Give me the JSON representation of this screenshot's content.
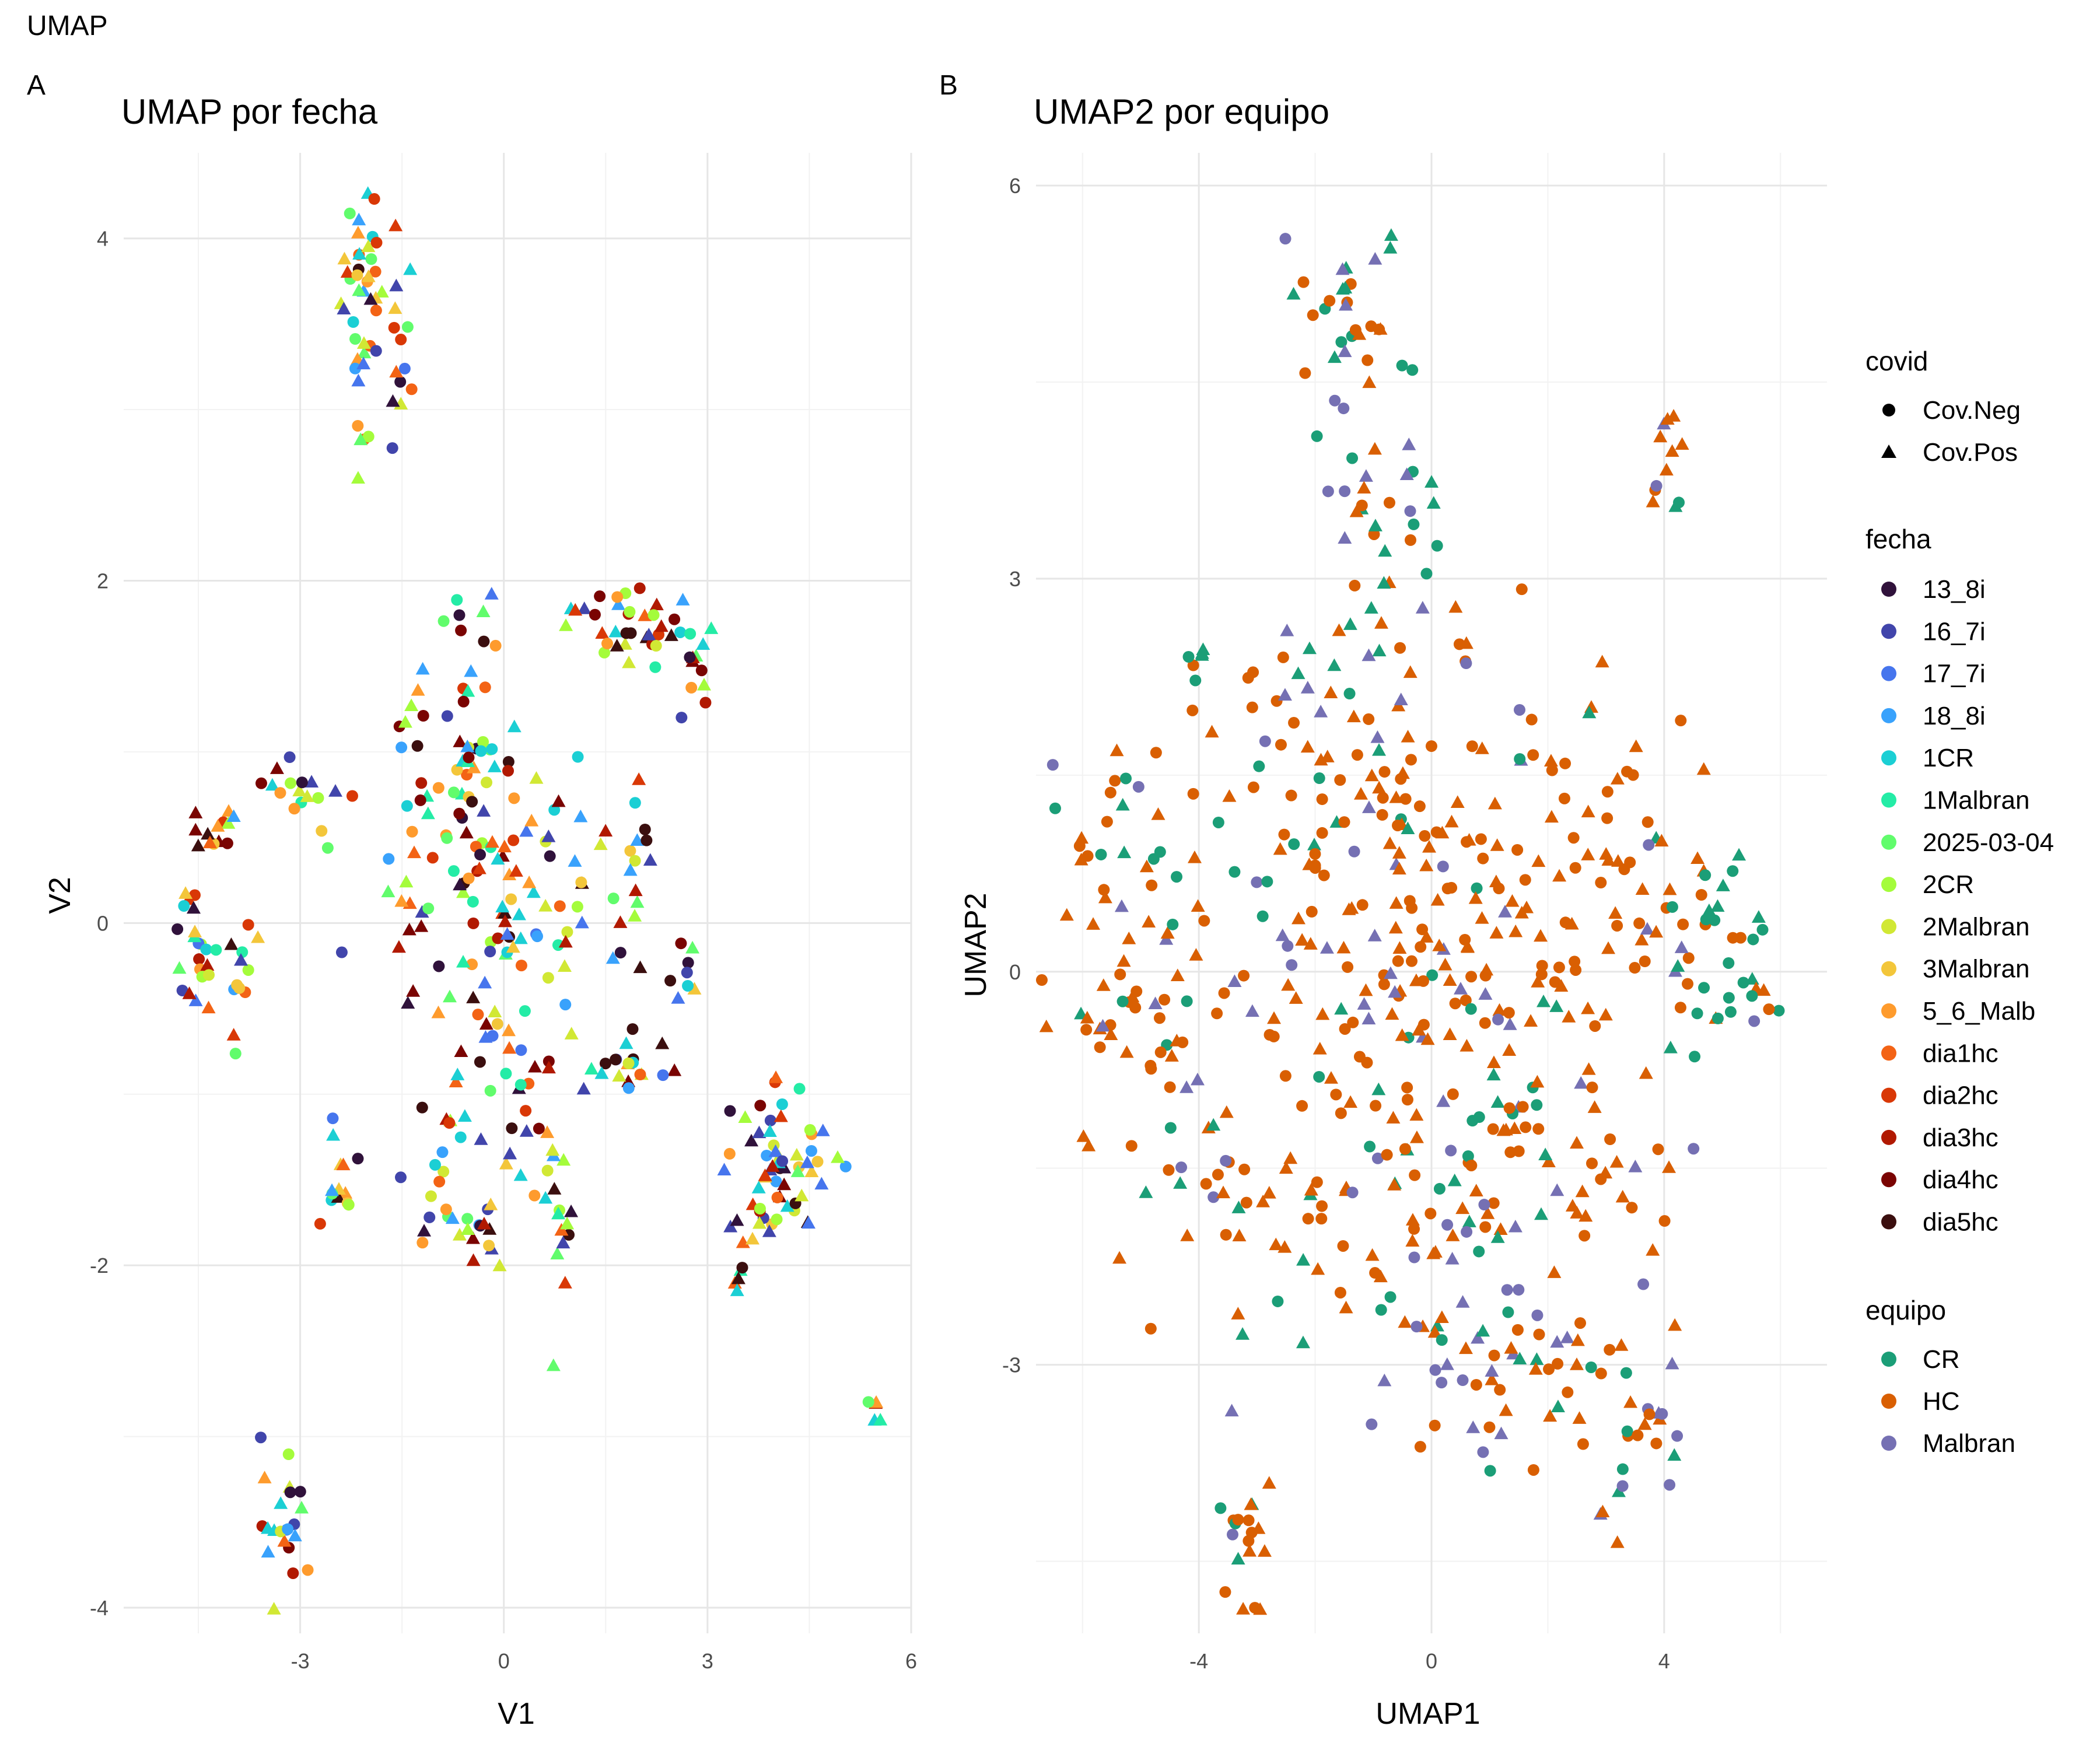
{
  "figure": {
    "title": "UMAP",
    "panel_a_tag": "A",
    "panel_b_tag": "B"
  },
  "colors": {
    "fecha": {
      "13_8i": "#30123B",
      "16_7i": "#4145AB",
      "17_7i": "#4675ED",
      "18_8i": "#39A2FC",
      "1CR": "#1BCFD4",
      "1Malbran": "#24ECA6",
      "2025-03-04": "#61FC6C",
      "2CR": "#A4FC3B",
      "2Malbran": "#D1E834",
      "3Malbran": "#F3C63A",
      "5_6_Malb": "#FE9B2D",
      "dia1hc": "#F36315",
      "dia2hc": "#D93806",
      "dia3hc": "#B11901",
      "dia4hc": "#7A0402",
      "dia5hc": "#3B0F0F"
    },
    "equipo": {
      "CR": "#1B9E77",
      "HC": "#D95F02",
      "Malbran": "#7570B3"
    }
  },
  "chart_data": [
    {
      "type": "scatter",
      "title": "UMAP por fecha",
      "xlabel": "V1",
      "ylabel": "V2",
      "xlim": [
        -5.6,
        6.0
      ],
      "ylim": [
        -4.15,
        4.5
      ],
      "xticks": [
        -3,
        0,
        3,
        6
      ],
      "yticks": [
        -4,
        -2,
        0,
        2,
        4
      ],
      "color_by": "fecha",
      "grid": true,
      "clusters": [
        {
          "x": -2.1,
          "y": 3.65,
          "sx": 0.15,
          "sy": 0.4,
          "n": 42,
          "pal": "all"
        },
        {
          "x": -1.5,
          "y": 3.2,
          "sx": 0.15,
          "sy": 0.35,
          "n": 14,
          "pal": "all"
        },
        {
          "x": -4.6,
          "y": -0.1,
          "sx": 0.12,
          "sy": 0.25,
          "n": 18,
          "pal": "all"
        },
        {
          "x": -4.0,
          "y": -0.35,
          "sx": 0.25,
          "sy": 0.18,
          "n": 16,
          "pal": "all"
        },
        {
          "x": -4.3,
          "y": 0.55,
          "sx": 0.22,
          "sy": 0.08,
          "n": 12,
          "pal": "all"
        },
        {
          "x": -3.0,
          "y": 0.75,
          "sx": 0.45,
          "sy": 0.15,
          "n": 18,
          "pal": "all"
        },
        {
          "x": -3.2,
          "y": -3.5,
          "sx": 0.18,
          "sy": 0.22,
          "n": 22,
          "pal": "all"
        },
        {
          "x": -2.4,
          "y": -1.6,
          "sx": 0.15,
          "sy": 0.22,
          "n": 14,
          "pal": "all"
        },
        {
          "x": -1.2,
          "y": 0.6,
          "sx": 0.35,
          "sy": 0.5,
          "n": 26,
          "pal": "all"
        },
        {
          "x": -0.4,
          "y": 0.45,
          "sx": 0.45,
          "sy": 0.6,
          "n": 60,
          "pal": "all"
        },
        {
          "x": -0.5,
          "y": 1.3,
          "sx": 0.2,
          "sy": 0.4,
          "n": 20,
          "pal": "all"
        },
        {
          "x": -0.3,
          "y": -0.4,
          "sx": 0.45,
          "sy": 0.35,
          "n": 30,
          "pal": "all"
        },
        {
          "x": 0.7,
          "y": 0.3,
          "sx": 0.35,
          "sy": 0.35,
          "n": 22,
          "pal": "all"
        },
        {
          "x": -0.8,
          "y": -1.3,
          "sx": 0.35,
          "sy": 0.3,
          "n": 24,
          "pal": "all"
        },
        {
          "x": 0.8,
          "y": -1.7,
          "sx": 0.12,
          "sy": 0.22,
          "n": 14,
          "pal": "all"
        },
        {
          "x": -0.3,
          "y": -1.8,
          "sx": 0.1,
          "sy": 0.12,
          "n": 10,
          "pal": "all"
        },
        {
          "x": 0.3,
          "y": -1.1,
          "sx": 0.25,
          "sy": 0.22,
          "n": 14,
          "pal": "all"
        },
        {
          "x": 1.6,
          "y": -0.85,
          "sx": 0.45,
          "sy": 0.1,
          "n": 20,
          "pal": "all"
        },
        {
          "x": 2.0,
          "y": 1.7,
          "sx": 0.6,
          "sy": 0.12,
          "n": 36,
          "pal": "all"
        },
        {
          "x": 2.9,
          "y": 1.6,
          "sx": 0.2,
          "sy": 0.25,
          "n": 12,
          "pal": "all"
        },
        {
          "x": 1.9,
          "y": 0.4,
          "sx": 0.15,
          "sy": 0.35,
          "n": 14,
          "pal": "all"
        },
        {
          "x": 1.3,
          "y": 0.0,
          "sx": 0.35,
          "sy": 0.3,
          "n": 10,
          "pal": "all"
        },
        {
          "x": 2.7,
          "y": -0.1,
          "sx": 0.1,
          "sy": 0.2,
          "n": 8,
          "pal": "all"
        },
        {
          "x": 4.1,
          "y": -1.45,
          "sx": 0.4,
          "sy": 0.22,
          "n": 46,
          "pal": "all"
        },
        {
          "x": 3.8,
          "y": -1.3,
          "sx": 0.3,
          "sy": 0.3,
          "n": 16,
          "pal": "all"
        },
        {
          "x": 3.5,
          "y": -2.1,
          "sx": 0.05,
          "sy": 0.05,
          "n": 5,
          "pal": "all"
        },
        {
          "x": 5.45,
          "y": -2.87,
          "sx": 0.05,
          "sy": 0.05,
          "n": 5,
          "pal": "all"
        }
      ]
    },
    {
      "type": "scatter",
      "title": "UMAP2 por equipo",
      "xlabel": "UMAP1",
      "ylabel": "UMAP2",
      "xlim": [
        -6.8,
        6.8
      ],
      "ylim": [
        -5.05,
        6.25
      ],
      "xticks": [
        -4,
        0,
        4
      ],
      "yticks": [
        -3,
        0,
        3,
        6
      ],
      "color_by": "equipo",
      "grid": true,
      "clusters": [
        {
          "x": -1.4,
          "y": 5.0,
          "sx": 0.5,
          "sy": 0.45,
          "n": 32,
          "pal": "mix"
        },
        {
          "x": -1.0,
          "y": 3.6,
          "sx": 0.6,
          "sy": 0.45,
          "n": 26,
          "pal": "mix"
        },
        {
          "x": 4.0,
          "y": 3.9,
          "sx": 0.15,
          "sy": 0.25,
          "n": 12,
          "pal": "hc"
        },
        {
          "x": -4.0,
          "y": 2.4,
          "sx": 0.1,
          "sy": 0.08,
          "n": 6,
          "pal": "cr"
        },
        {
          "x": -5.5,
          "y": 1.1,
          "sx": 0.5,
          "sy": 0.35,
          "n": 24,
          "pal": "mix"
        },
        {
          "x": -5.0,
          "y": -0.3,
          "sx": 0.8,
          "sy": 0.6,
          "n": 40,
          "pal": "hc"
        },
        {
          "x": -3.5,
          "y": -1.6,
          "sx": 0.5,
          "sy": 0.35,
          "n": 16,
          "pal": "hc"
        },
        {
          "x": -2.0,
          "y": 1.5,
          "sx": 1.2,
          "sy": 0.5,
          "n": 50,
          "pal": "hc"
        },
        {
          "x": 0.0,
          "y": 0.3,
          "sx": 1.8,
          "sy": 0.9,
          "n": 180,
          "pal": "hc"
        },
        {
          "x": -1.0,
          "y": -1.5,
          "sx": 1.5,
          "sy": 0.8,
          "n": 90,
          "pal": "hc"
        },
        {
          "x": 2.0,
          "y": -1.3,
          "sx": 1.2,
          "sy": 0.6,
          "n": 60,
          "pal": "hc"
        },
        {
          "x": 3.5,
          "y": 0.6,
          "sx": 0.8,
          "sy": 0.7,
          "n": 40,
          "pal": "hc"
        },
        {
          "x": 5.2,
          "y": 0.2,
          "sx": 0.6,
          "sy": 0.5,
          "n": 30,
          "pal": "cr"
        },
        {
          "x": 0.5,
          "y": -2.8,
          "sx": 0.6,
          "sy": 0.6,
          "n": 30,
          "pal": "mix"
        },
        {
          "x": 2.5,
          "y": -3.1,
          "sx": 0.8,
          "sy": 0.45,
          "n": 30,
          "pal": "hc"
        },
        {
          "x": 3.6,
          "y": -3.6,
          "sx": 0.4,
          "sy": 0.35,
          "n": 18,
          "pal": "mix"
        },
        {
          "x": -3.2,
          "y": -4.1,
          "sx": 0.25,
          "sy": 0.6,
          "n": 22,
          "pal": "hc"
        },
        {
          "x": -0.5,
          "y": 2.6,
          "sx": 0.7,
          "sy": 0.3,
          "n": 16,
          "pal": "mix"
        }
      ]
    }
  ],
  "legend": {
    "covid_title": "covid",
    "covid_items": [
      "Cov.Neg",
      "Cov.Pos"
    ],
    "fecha_title": "fecha",
    "fecha_items": [
      "13_8i",
      "16_7i",
      "17_7i",
      "18_8i",
      "1CR",
      "1Malbran",
      "2025-03-04",
      "2CR",
      "2Malbran",
      "3Malbran",
      "5_6_Malb",
      "dia1hc",
      "dia2hc",
      "dia3hc",
      "dia4hc",
      "dia5hc"
    ],
    "equipo_title": "equipo",
    "equipo_items": [
      "CR",
      "HC",
      "Malbran"
    ]
  }
}
